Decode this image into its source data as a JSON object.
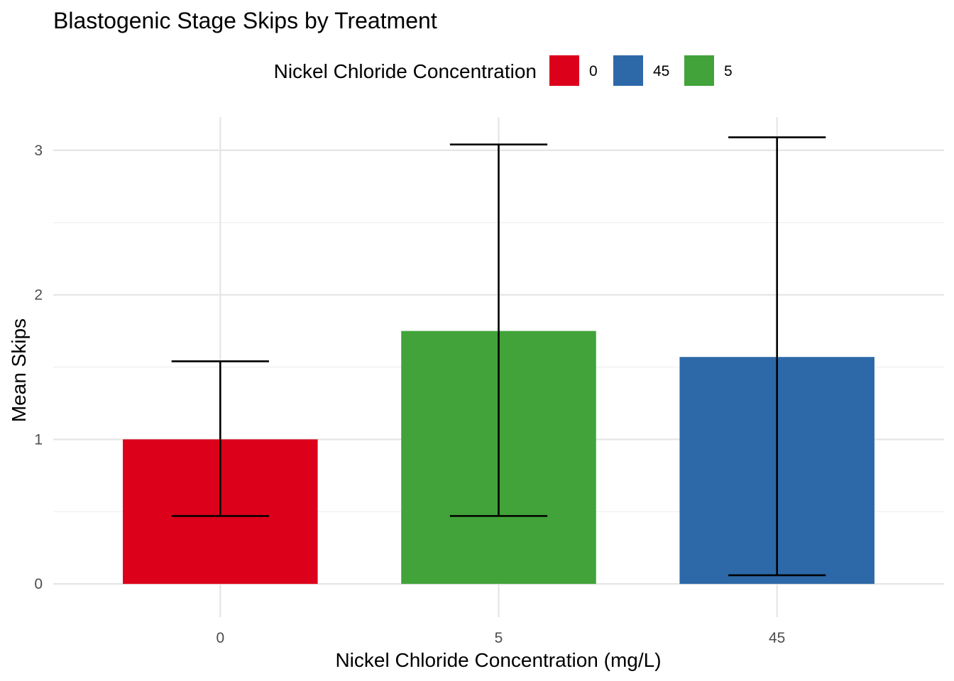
{
  "chart_data": {
    "type": "bar",
    "title": "Blastogenic Stage Skips by Treatment",
    "xlabel": "Nickel Chloride Concentration (mg/L)",
    "ylabel": "Mean Skips",
    "categories": [
      "0",
      "5",
      "45"
    ],
    "values": [
      1.0,
      1.75,
      1.57
    ],
    "error_low": [
      0.47,
      0.47,
      0.06
    ],
    "error_high": [
      1.54,
      3.04,
      3.09
    ],
    "bar_colors": [
      "#DC001B",
      "#41A339",
      "#2D69A8"
    ],
    "ylim": [
      -0.23,
      3.23
    ],
    "y_ticks": [
      "0",
      "1",
      "2",
      "3"
    ],
    "y_tick_values": [
      0,
      1,
      2,
      3
    ],
    "y_minor_values": [
      0.5,
      1.5,
      2.5
    ],
    "grid": true,
    "legend": {
      "title": "Nickel Chloride Concentration",
      "position": "top",
      "entries": [
        {
          "label": "0",
          "color": "#DC001B"
        },
        {
          "label": "45",
          "color": "#2D69A8"
        },
        {
          "label": "5",
          "color": "#41A339"
        }
      ]
    }
  }
}
